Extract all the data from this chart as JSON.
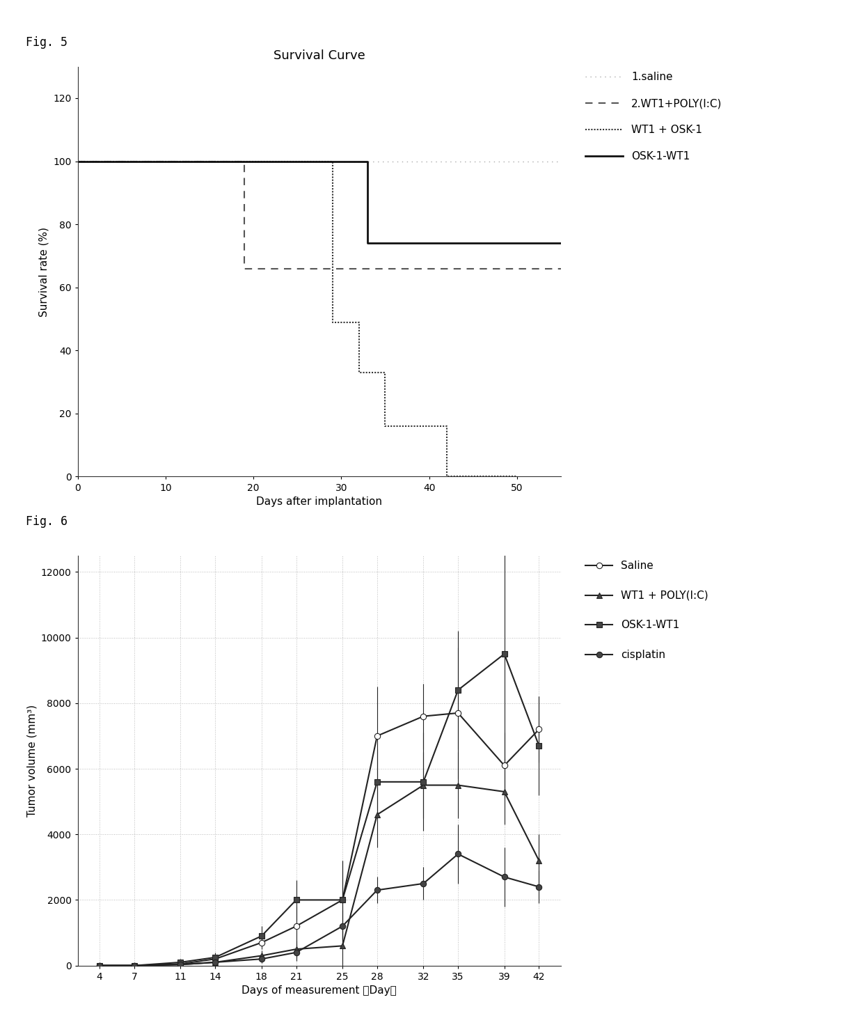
{
  "fig5": {
    "title": "Survival Curve",
    "xlabel": "Days after implantation",
    "ylabel": "Survival rate (%)",
    "xlim": [
      0,
      55
    ],
    "ylim": [
      0,
      130
    ],
    "yticks": [
      0,
      20,
      40,
      60,
      80,
      100,
      120
    ],
    "xticks": [
      0,
      10,
      20,
      30,
      40,
      50
    ],
    "series": [
      {
        "label": "1.saline",
        "linestyle": "loosely dotted",
        "color": "#aaaaaa",
        "linewidth": 1.0,
        "x": [
          0,
          55
        ],
        "y": [
          100,
          100
        ]
      },
      {
        "label": "2.WT1+POLY(I:C)",
        "linestyle": "dashed",
        "color": "#555555",
        "linewidth": 1.5,
        "x": [
          0,
          19,
          19,
          55
        ],
        "y": [
          100,
          100,
          66,
          66
        ]
      },
      {
        "label": "WT1 + OSK-1",
        "linestyle": "densely dotted",
        "color": "#333333",
        "linewidth": 1.5,
        "x": [
          0,
          29,
          29,
          32,
          32,
          35,
          35,
          42,
          42,
          50
        ],
        "y": [
          100,
          100,
          49,
          49,
          33,
          33,
          16,
          16,
          0,
          0
        ]
      },
      {
        "label": "OSK-1-WT1",
        "linestyle": "solid",
        "color": "#111111",
        "linewidth": 2.0,
        "x": [
          0,
          33,
          33,
          55
        ],
        "y": [
          100,
          100,
          74,
          74
        ]
      }
    ],
    "legend_labels": [
      "1.saline",
      "2.WT1+POLY(I:C)",
      "WT1 + OSK-1",
      "OSK-1-WT1"
    ],
    "legend_linestyles": [
      "loosely dotted",
      "dashed",
      "densely dotted",
      "solid"
    ],
    "legend_colors": [
      "#aaaaaa",
      "#555555",
      "#333333",
      "#111111"
    ],
    "legend_linewidths": [
      1.0,
      1.5,
      1.5,
      2.0
    ]
  },
  "fig6": {
    "xlabel": "Days of measurement 〈Day〉",
    "ylabel": "Tumor volume (mm³)",
    "ylim": [
      0,
      12500
    ],
    "yticks": [
      0,
      2000,
      4000,
      6000,
      8000,
      10000,
      12000
    ],
    "xticks": [
      4,
      7,
      11,
      14,
      18,
      21,
      25,
      28,
      32,
      35,
      39,
      42
    ],
    "series": [
      {
        "label": "Saline",
        "marker": "o",
        "markerfacecolor": "white",
        "color": "#222222",
        "linewidth": 1.5,
        "x": [
          4,
          7,
          11,
          14,
          18,
          21,
          25,
          28,
          32,
          35,
          39,
          42
        ],
        "y": [
          0,
          0,
          50,
          200,
          700,
          1200,
          2000,
          7000,
          7600,
          7700,
          6100,
          7200
        ],
        "yerr": [
          0,
          30,
          50,
          100,
          200,
          600,
          1200,
          1500,
          1000,
          2000,
          1000,
          1000
        ]
      },
      {
        "label": "WT1 + POLY(I:C)",
        "marker": "^",
        "markerfacecolor": "#444444",
        "color": "#222222",
        "linewidth": 1.5,
        "x": [
          4,
          7,
          11,
          14,
          18,
          21,
          25,
          28,
          32,
          35,
          39,
          42
        ],
        "y": [
          0,
          0,
          30,
          100,
          300,
          500,
          600,
          4600,
          5500,
          5500,
          5300,
          3200
        ],
        "yerr": [
          0,
          20,
          40,
          80,
          150,
          250,
          700,
          1000,
          1000,
          1000,
          1000,
          800
        ]
      },
      {
        "label": "OSK-1-WT1",
        "marker": "s",
        "markerfacecolor": "#444444",
        "color": "#222222",
        "linewidth": 1.5,
        "x": [
          4,
          7,
          11,
          14,
          18,
          21,
          25,
          28,
          32,
          35,
          39,
          42
        ],
        "y": [
          0,
          0,
          100,
          250,
          900,
          2000,
          2000,
          5600,
          5600,
          8400,
          9500,
          6700
        ],
        "yerr": [
          0,
          20,
          100,
          150,
          300,
          600,
          1200,
          1000,
          1500,
          1800,
          3500,
          1500
        ]
      },
      {
        "label": "cisplatin",
        "marker": "o",
        "markerfacecolor": "#444444",
        "color": "#222222",
        "linewidth": 1.5,
        "x": [
          4,
          7,
          11,
          14,
          18,
          21,
          25,
          28,
          32,
          35,
          39,
          42
        ],
        "y": [
          0,
          0,
          30,
          100,
          200,
          400,
          1200,
          2300,
          2500,
          3400,
          2700,
          2400
        ],
        "yerr": [
          0,
          20,
          30,
          60,
          120,
          250,
          500,
          400,
          500,
          900,
          900,
          500
        ]
      }
    ]
  },
  "background_color": "#ffffff",
  "fig5_label": "Fig. 5",
  "fig6_label": "Fig. 6"
}
